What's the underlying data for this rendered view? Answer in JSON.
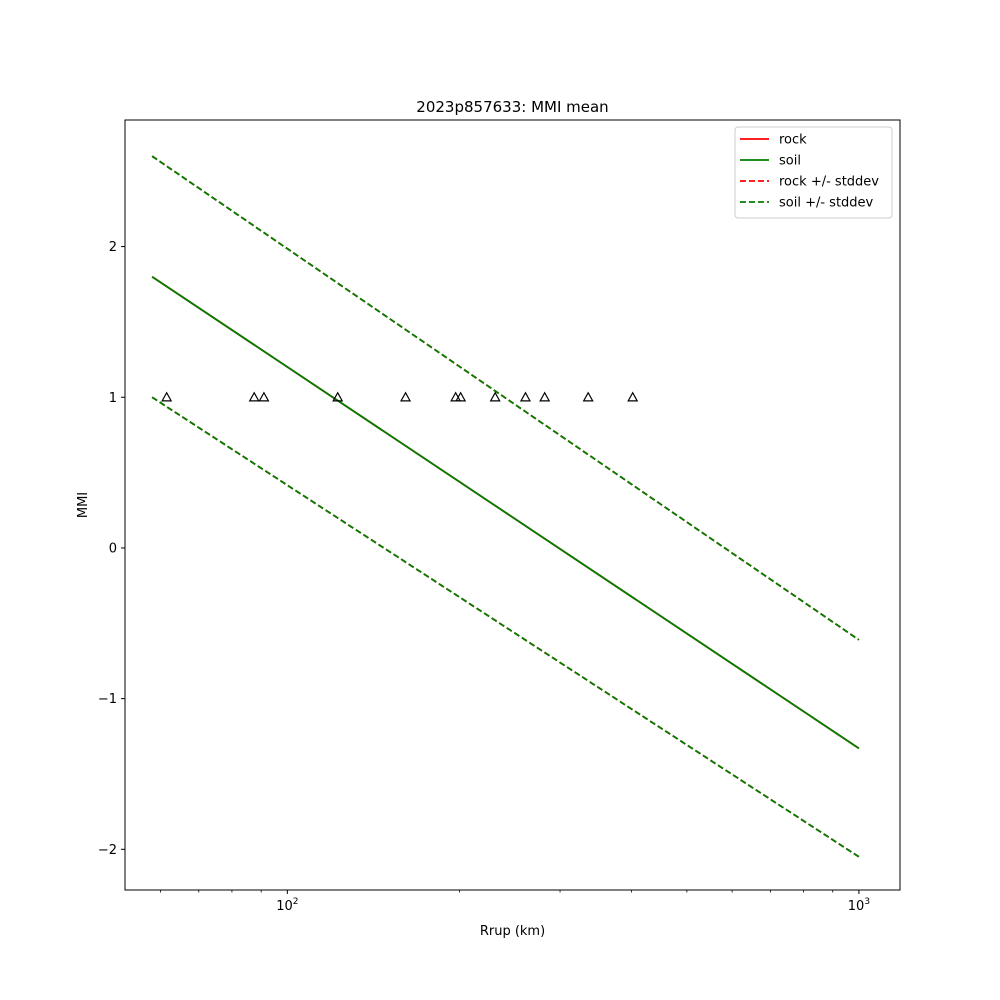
{
  "chart_data": {
    "type": "line",
    "title": "2023p857633: MMI mean",
    "xlabel": "Rrup (km)",
    "ylabel": "MMI",
    "xscale": "log",
    "xlim": [
      52,
      1180
    ],
    "ylim": [
      -2.27,
      2.84
    ],
    "xticks_major": [
      {
        "value": 100,
        "base": "10",
        "exp": "2"
      },
      {
        "value": 1000,
        "base": "10",
        "exp": "3"
      }
    ],
    "xticks_minor": [
      60,
      70,
      80,
      90,
      200,
      300,
      400,
      500,
      600,
      700,
      800,
      900
    ],
    "yticks": [
      {
        "value": 2,
        "label": "2"
      },
      {
        "value": 1,
        "label": "1"
      },
      {
        "value": 0,
        "label": "0"
      },
      {
        "value": -1,
        "label": "−1"
      },
      {
        "value": -2,
        "label": "−2"
      }
    ],
    "grid": false,
    "legend_position": "top-right",
    "series": [
      {
        "name": "rock",
        "color": "#ff0000",
        "dash": "solid",
        "x": [
          58,
          1000
        ],
        "y": [
          1.8,
          -1.33
        ]
      },
      {
        "name": "soil",
        "color": "#007f00",
        "dash": "solid",
        "x": [
          58,
          1000
        ],
        "y": [
          1.8,
          -1.33
        ]
      },
      {
        "name": "rock +/- stddev",
        "color": "#ff0000",
        "dash": "dashed",
        "x": [
          58,
          1000
        ],
        "y": [
          2.6,
          -0.61
        ]
      },
      {
        "name": "rock +/- stddev",
        "color": "#ff0000",
        "dash": "dashed",
        "x": [
          58,
          1000
        ],
        "y": [
          1.0,
          -2.05
        ],
        "legend": false
      },
      {
        "name": "soil +/- stddev",
        "color": "#007f00",
        "dash": "dashed",
        "x": [
          58,
          1000
        ],
        "y": [
          2.6,
          -0.61
        ]
      },
      {
        "name": "soil +/- stddev",
        "color": "#007f00",
        "dash": "dashed",
        "x": [
          58,
          1000
        ],
        "y": [
          1.0,
          -2.05
        ],
        "legend": false
      }
    ],
    "observations": {
      "marker": "triangle",
      "color": "#000000",
      "x": [
        61.5,
        87.5,
        91.0,
        122.5,
        161.0,
        197.0,
        201.0,
        231.0,
        261.0,
        282.0,
        336.0,
        402.0
      ],
      "y": [
        1,
        1,
        1,
        1,
        1,
        1,
        1,
        1,
        1,
        1,
        1,
        1
      ]
    }
  }
}
